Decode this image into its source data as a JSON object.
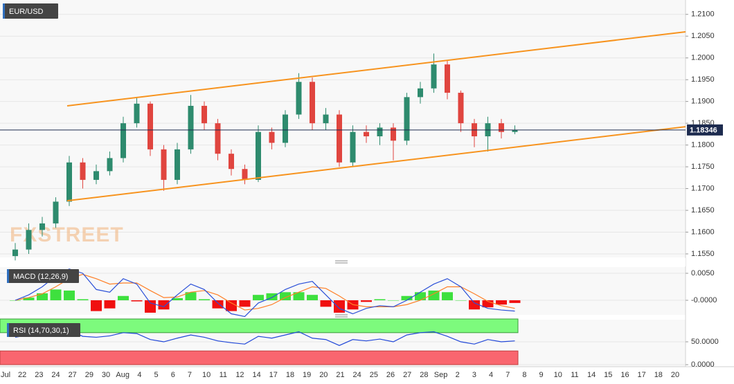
{
  "chart_data": [
    {
      "type": "candlestick",
      "title": "EUR/USD",
      "watermark": "FXSTREET",
      "open": [
        1.1545,
        1.156,
        1.1605,
        1.162,
        1.167,
        1.176,
        1.172,
        1.174,
        1.177,
        1.185,
        1.1895,
        1.179,
        1.172,
        1.179,
        1.189,
        1.185,
        1.178,
        1.1745,
        1.172,
        1.183,
        1.1805,
        1.187,
        1.1945,
        1.185,
        1.187,
        1.176,
        1.183,
        1.182,
        1.184,
        1.181,
        1.191,
        1.193,
        1.1985,
        1.192,
        1.185,
        1.182,
        1.185,
        1.183
      ],
      "high": [
        1.1575,
        1.162,
        1.1635,
        1.168,
        1.1775,
        1.177,
        1.1755,
        1.1785,
        1.1865,
        1.1908,
        1.19,
        1.18,
        1.1805,
        1.1915,
        1.19,
        1.186,
        1.179,
        1.1755,
        1.1845,
        1.184,
        1.188,
        1.1965,
        1.1955,
        1.1885,
        1.188,
        1.1845,
        1.1845,
        1.185,
        1.185,
        1.192,
        1.1945,
        1.201,
        1.1995,
        1.1925,
        1.186,
        1.1865,
        1.186,
        1.1845
      ],
      "low": [
        1.1535,
        1.155,
        1.159,
        1.161,
        1.166,
        1.17,
        1.171,
        1.173,
        1.176,
        1.184,
        1.1775,
        1.1695,
        1.171,
        1.178,
        1.1835,
        1.1765,
        1.173,
        1.171,
        1.1715,
        1.179,
        1.1795,
        1.186,
        1.1835,
        1.1835,
        1.175,
        1.175,
        1.1805,
        1.18,
        1.1765,
        1.18,
        1.1895,
        1.192,
        1.1905,
        1.183,
        1.1795,
        1.1785,
        1.1815,
        1.1825
      ],
      "close": [
        1.156,
        1.1605,
        1.162,
        1.167,
        1.176,
        1.172,
        1.174,
        1.177,
        1.185,
        1.1895,
        1.179,
        1.172,
        1.179,
        1.189,
        1.185,
        1.178,
        1.1745,
        1.172,
        1.183,
        1.1805,
        1.187,
        1.1945,
        1.185,
        1.187,
        1.176,
        1.183,
        1.182,
        1.184,
        1.181,
        1.191,
        1.193,
        1.1985,
        1.192,
        1.185,
        1.182,
        1.185,
        1.183,
        1.1835
      ],
      "up_color": "#2e8b6e",
      "down_color": "#e0453f",
      "channel": {
        "upper": [
          1.189,
          1.206
        ],
        "lower": [
          1.1672,
          1.1842
        ],
        "color": "#f7931e"
      },
      "last_price": 1.18346,
      "last_color": "#1d2b4f",
      "ylim": [
        1.1542,
        1.2133
      ],
      "yticks": [
        {
          "value": 1.21,
          "label": "1.2100"
        },
        {
          "value": 1.205,
          "label": "1.2050"
        },
        {
          "value": 1.2,
          "label": "1.2000"
        },
        {
          "value": 1.195,
          "label": "1.1950"
        },
        {
          "value": 1.19,
          "label": "1.1900"
        },
        {
          "value": 1.185,
          "label": "1.1850"
        },
        {
          "value": 1.18,
          "label": "1.1800"
        },
        {
          "value": 1.175,
          "label": "1.1750"
        },
        {
          "value": 1.17,
          "label": "1.1700"
        },
        {
          "value": 1.165,
          "label": "1.1650"
        },
        {
          "value": 1.16,
          "label": "1.1600"
        },
        {
          "value": 1.155,
          "label": "1.1550"
        }
      ],
      "grid": true,
      "xtick_labels": [
        "Jul",
        "22",
        "23",
        "24",
        "27",
        "29",
        "30",
        "Aug",
        "4",
        "5",
        "6",
        "7",
        "10",
        "11",
        "12",
        "14",
        "17",
        "18",
        "19",
        "20",
        "21",
        "24",
        "25",
        "26",
        "27",
        "28",
        "Sep",
        "2",
        "3",
        "4",
        "7",
        "8",
        "9",
        "10",
        "11",
        "14",
        "15",
        "16",
        "17",
        "18",
        "20"
      ]
    },
    {
      "type": "macd",
      "title": "MACD (12,26,9)",
      "macd": [
        0.0,
        0.001,
        0.0025,
        0.0045,
        0.0058,
        0.005,
        0.002,
        0.0015,
        0.004,
        0.003,
        -0.0005,
        -0.0012,
        0.001,
        0.003,
        0.002,
        -0.0005,
        -0.0025,
        -0.003,
        -0.0005,
        0.0005,
        0.002,
        0.003,
        0.0035,
        0.001,
        -0.0015,
        -0.0025,
        -0.0015,
        -0.001,
        -0.0012,
        0.0,
        0.0015,
        0.003,
        0.004,
        0.0025,
        -0.0005,
        -0.0015,
        -0.0018,
        -0.002
      ],
      "signal": [
        0.0,
        0.0005,
        0.0012,
        0.0025,
        0.004,
        0.0048,
        0.004,
        0.003,
        0.0032,
        0.0032,
        0.0018,
        0.0005,
        0.0006,
        0.0015,
        0.0018,
        0.001,
        -0.0005,
        -0.0018,
        -0.0015,
        -0.0008,
        0.0005,
        0.0015,
        0.0025,
        0.0022,
        0.0008,
        -0.0008,
        -0.0012,
        -0.0012,
        -0.0012,
        -0.0008,
        0.0,
        0.0012,
        0.0025,
        0.0025,
        0.0012,
        -0.0002,
        -0.001,
        -0.0015
      ],
      "histogram": [
        0,
        0.0005,
        0.0013,
        0.002,
        0.0018,
        0.0002,
        -0.002,
        -0.0015,
        0.0008,
        -0.0002,
        -0.0023,
        -0.0017,
        0.0004,
        0.0015,
        0.0002,
        -0.0015,
        -0.002,
        -0.0012,
        0.001,
        0.0013,
        0.0015,
        0.0015,
        0.001,
        -0.0012,
        -0.0023,
        -0.0017,
        -0.0003,
        0.0002,
        0,
        0.0008,
        0.0015,
        0.0018,
        0.0015,
        0,
        -0.0017,
        -0.0013,
        -0.0008,
        -0.0005
      ],
      "macd_color": "#2b50d8",
      "signal_color": "#ff7f27",
      "hist_up_color": "#3ee03e",
      "hist_down_color": "#f01010",
      "ylim": [
        -0.00269,
        0.00615
      ],
      "yticks": [
        {
          "value": 0.005,
          "label": "0.0050"
        },
        {
          "value": 0,
          "label": "-0.0000"
        }
      ]
    },
    {
      "type": "rsi",
      "title": "RSI (14,70,30,1)",
      "values": [
        60,
        65,
        70,
        72,
        75,
        62,
        60,
        63,
        70,
        68,
        55,
        50,
        58,
        65,
        60,
        52,
        48,
        45,
        62,
        58,
        65,
        72,
        58,
        55,
        42,
        55,
        52,
        56,
        50,
        65,
        70,
        72,
        62,
        50,
        45,
        55,
        50,
        52
      ],
      "color": "#1f46d8",
      "upper_band": [
        70,
        100
      ],
      "lower_band": [
        0,
        30
      ],
      "upper_color": "#7dfa7d",
      "lower_color": "#f9666f",
      "ylim": [
        -4.5,
        98.5
      ],
      "yticks": [
        {
          "value": 50,
          "label": "50.0000"
        },
        {
          "value": 0,
          "label": "0.0000"
        }
      ]
    }
  ]
}
